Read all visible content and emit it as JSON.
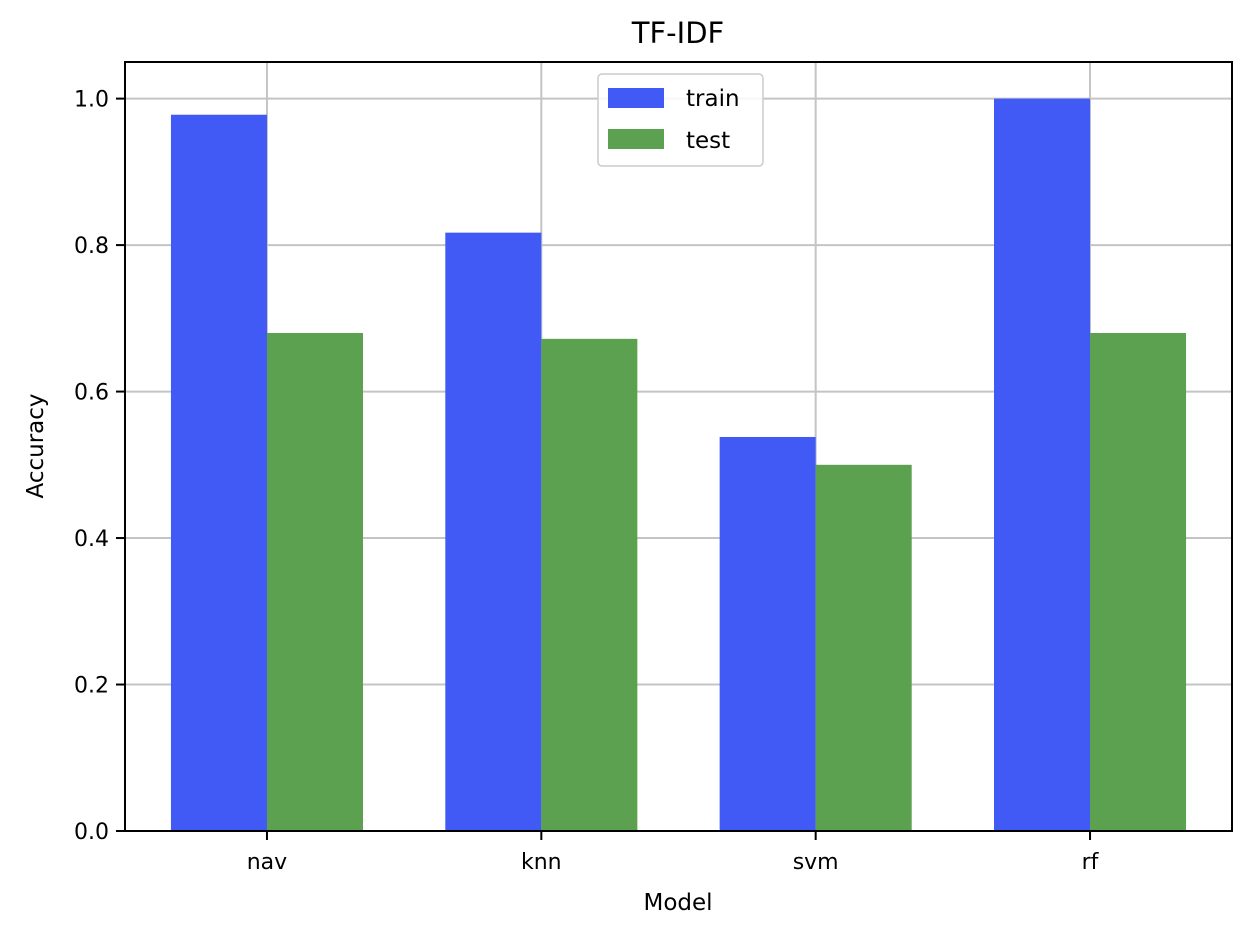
{
  "chart_data": {
    "type": "bar",
    "title": "TF-IDF",
    "xlabel": "Model",
    "ylabel": "Accuracy",
    "categories": [
      "nav",
      "knn",
      "svm",
      "rf"
    ],
    "series": [
      {
        "name": "train",
        "color": "#4159f5",
        "values": [
          0.978,
          0.817,
          0.538,
          1.0
        ]
      },
      {
        "name": "test",
        "color": "#5ba14f",
        "values": [
          0.68,
          0.672,
          0.5,
          0.68
        ]
      }
    ],
    "ylim": [
      0,
      1.05
    ],
    "yticks": [
      "0.0",
      "0.2",
      "0.4",
      "0.6",
      "0.8",
      "1.0"
    ],
    "grid": true,
    "legend_position": "top-center"
  }
}
